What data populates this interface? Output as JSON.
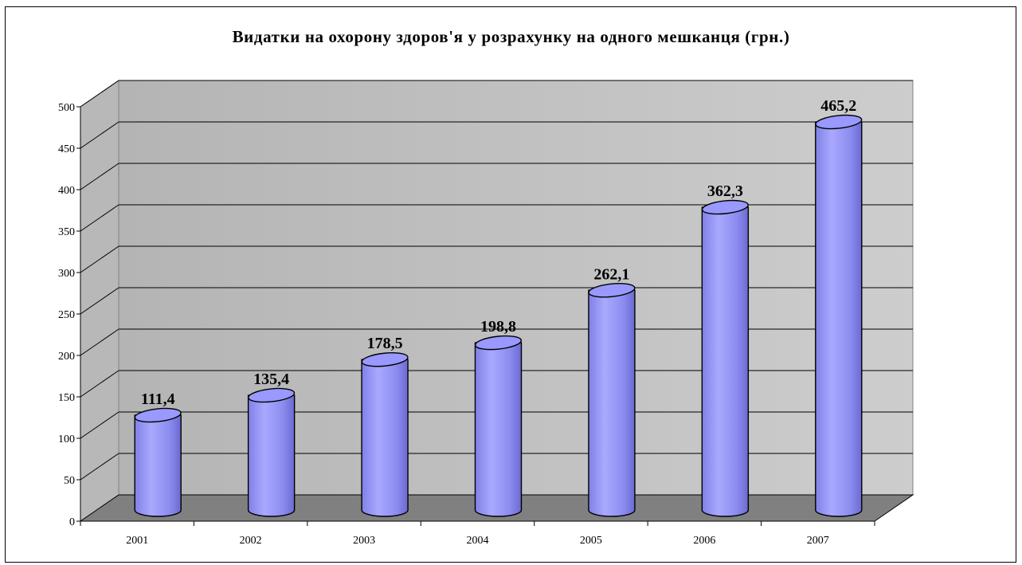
{
  "chart_data": {
    "type": "bar",
    "title": "Видатки на охорону здоров'я у розрахунку на одного мешканця (грн.)",
    "xlabel": "",
    "ylabel": "",
    "ylim": [
      0,
      500
    ],
    "yticks": [
      0,
      50,
      100,
      150,
      200,
      250,
      300,
      350,
      400,
      450,
      500
    ],
    "grid": true,
    "legend": "none",
    "categories": [
      "2001",
      "2002",
      "2003",
      "2004",
      "2005",
      "2006",
      "2007"
    ],
    "values": [
      111.4,
      135.4,
      178.5,
      198.8,
      262.1,
      362.3,
      465.2
    ],
    "value_labels": [
      "111,4",
      "135,4",
      "178,5",
      "198,8",
      "262,1",
      "362,3",
      "465,2"
    ],
    "bar_color": "#9999ff",
    "wall_color": "#c0c0c0",
    "floor_color": "#808080"
  }
}
